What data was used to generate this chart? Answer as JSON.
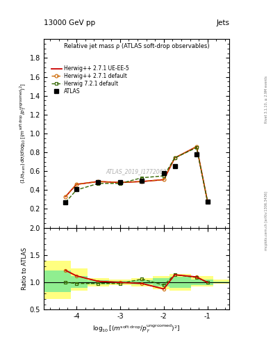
{
  "title_top": "13000 GeV pp",
  "title_right": "Jets",
  "plot_title": "Relative jet mass ρ (ATLAS soft-drop observables)",
  "watermark": "ATLAS_2019_I1772062",
  "right_label_top": "Rivet 3.1.10, ≥ 2.9M events",
  "right_label_bot": "mcplots.cern.ch [arXiv:1306.3436]",
  "ylabel_ratio": "Ratio to ATLAS",
  "xlim": [
    -4.75,
    -0.5
  ],
  "ylim_main": [
    0.0,
    2.0
  ],
  "ylim_ratio": [
    0.5,
    2.0
  ],
  "yticks_main": [
    0.2,
    0.4,
    0.6,
    0.8,
    1.0,
    1.2,
    1.4,
    1.6,
    1.8
  ],
  "yticks_ratio": [
    0.5,
    1.0,
    1.5,
    2.0
  ],
  "xticks": [
    -4.0,
    -3.0,
    -2.0,
    -1.0
  ],
  "xticklabels": [
    "-4",
    "-3",
    "-2",
    "-1"
  ],
  "atlas_x": [
    -4.25,
    -4.0,
    -3.5,
    -3.0,
    -2.5,
    -2.0,
    -1.75,
    -1.25,
    -1.0
  ],
  "atlas_y": [
    0.27,
    0.41,
    0.48,
    0.48,
    0.5,
    0.58,
    0.65,
    0.78,
    0.28
  ],
  "hw271_x": [
    -4.25,
    -4.0,
    -3.5,
    -3.0,
    -2.5,
    -2.0,
    -1.75,
    -1.25,
    -1.0
  ],
  "hw271_y": [
    0.33,
    0.46,
    0.49,
    0.48,
    0.49,
    0.51,
    0.74,
    0.86,
    0.28
  ],
  "hw271ue_x": [
    -4.25,
    -4.0,
    -3.5,
    -3.0,
    -2.5,
    -2.0,
    -1.75,
    -1.25,
    -1.0
  ],
  "hw271ue_y": [
    0.33,
    0.46,
    0.49,
    0.48,
    0.49,
    0.51,
    0.74,
    0.86,
    0.28
  ],
  "hw721_x": [
    -4.25,
    -4.0,
    -3.5,
    -3.0,
    -2.5,
    -2.0,
    -1.75,
    -1.25,
    -1.0
  ],
  "hw721_y": [
    0.27,
    0.4,
    0.47,
    0.47,
    0.53,
    0.55,
    0.74,
    0.85,
    0.28
  ],
  "ratio_x": [
    -4.25,
    -4.0,
    -3.5,
    -3.0,
    -2.5,
    -2.0,
    -1.75,
    -1.25,
    -1.0
  ],
  "ratio_hw271_y": [
    1.22,
    1.12,
    1.02,
    1.0,
    0.98,
    0.88,
    1.14,
    1.1,
    1.0
  ],
  "ratio_hw271ue_y": [
    1.22,
    1.12,
    1.02,
    1.0,
    0.98,
    0.88,
    1.14,
    1.1,
    1.0
  ],
  "ratio_hw721_y": [
    1.0,
    0.98,
    0.98,
    0.98,
    1.06,
    0.95,
    1.14,
    1.09,
    1.0
  ],
  "band_x_edges": [
    -4.75,
    -4.125,
    -3.75,
    -3.25,
    -2.75,
    -2.25,
    -1.875,
    -1.375,
    -0.875,
    -0.5
  ],
  "band_yellow_lo": [
    0.7,
    0.85,
    0.93,
    0.95,
    0.93,
    0.87,
    0.85,
    0.92,
    0.97
  ],
  "band_yellow_hi": [
    1.4,
    1.25,
    1.08,
    1.05,
    1.08,
    1.12,
    1.16,
    1.12,
    1.05
  ],
  "band_green_lo": [
    0.82,
    0.9,
    0.96,
    0.97,
    0.96,
    0.92,
    0.9,
    0.95,
    0.99
  ],
  "band_green_hi": [
    1.22,
    1.12,
    1.04,
    1.03,
    1.04,
    1.08,
    1.1,
    1.05,
    1.01
  ],
  "color_atlas": "#000000",
  "color_hw271": "#cc6600",
  "color_hw271ue": "#cc0000",
  "color_hw721": "#336600",
  "color_band_green": "#90ee90",
  "color_band_yellow": "#ffff80"
}
